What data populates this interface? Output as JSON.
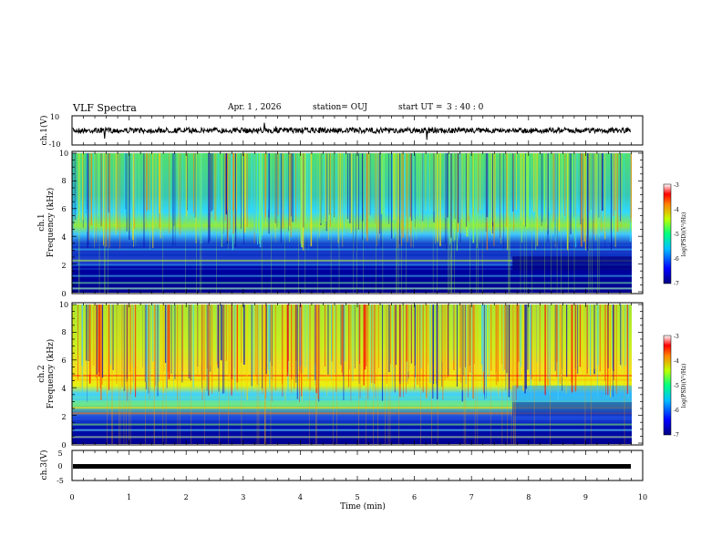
{
  "header": {
    "title": "VLF Spectra",
    "date": "Apr. 1 , 2026",
    "station": "station= OUJ",
    "start_label": "start UT =",
    "start_time": "3 : 40 : 0"
  },
  "chart_data": [
    {
      "type": "line",
      "ylabel": "ch.1(V)",
      "ylim": [
        -10,
        10
      ],
      "yticks": [
        "10",
        "-10"
      ],
      "xlim": [
        0,
        10
      ],
      "series": [
        {
          "values_desc": []
        }
      ]
    },
    {
      "type": "heatmap",
      "ylabel": [
        "ch.1",
        "Frequency (kHz)"
      ],
      "ylim": [
        0,
        10
      ],
      "yticks": [
        "0",
        "2",
        "4",
        "6",
        "8",
        "10"
      ],
      "xlim": [
        0,
        9.85
      ],
      "colorbar": {
        "label": "log(PSD)(V²/Hz)",
        "range": [
          -7,
          -3
        ],
        "ticks": [
          "-3",
          "-4",
          "-5",
          "-6",
          "-7"
        ]
      },
      "event_time_min": 7.75
    },
    {
      "type": "heatmap",
      "ylabel": [
        "ch.2",
        "Frequency (kHz)"
      ],
      "ylim": [
        0,
        10
      ],
      "yticks": [
        "0",
        "2",
        "4",
        "6",
        "8",
        "10"
      ],
      "xlim": [
        0,
        9.85
      ],
      "colorbar": {
        "label": "log(PSD)(V²/Hz)",
        "range": [
          -7,
          -3
        ],
        "ticks": [
          "-3",
          "-4",
          "-5",
          "-6",
          "-7"
        ]
      },
      "event_time_min": 7.75
    },
    {
      "type": "line",
      "ylabel": "ch.3(V)",
      "ylim": [
        -5,
        5
      ],
      "yticks": [
        "5",
        "0",
        "-5"
      ],
      "xlim": [
        0,
        10
      ],
      "series": [
        {
          "constant_value": 0
        }
      ]
    }
  ],
  "x_axis": {
    "label": "Time (min)",
    "range": [
      0,
      10
    ],
    "ticks": [
      "0",
      "1",
      "2",
      "3",
      "4",
      "5",
      "6",
      "7",
      "8",
      "9",
      "10"
    ]
  }
}
